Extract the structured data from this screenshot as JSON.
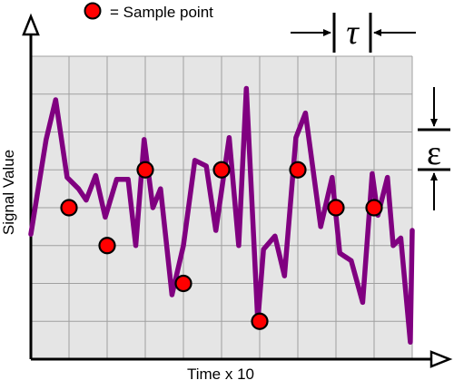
{
  "legend": {
    "marker_label": "= Sample point",
    "marker_color": "#ff0000"
  },
  "axes": {
    "x_label": "Time x 10",
    "y_label": "Signal Value"
  },
  "annotations": {
    "tau": "τ",
    "epsilon": "ε"
  },
  "colors": {
    "signal": "#800080",
    "plot_background": "#e5e5e5",
    "grid": "#a0a0a0",
    "axis": "#000000"
  },
  "grid": {
    "columns": 10,
    "rows": 8
  },
  "chart_data": {
    "type": "line",
    "x_range": [
      0,
      10
    ],
    "y_range": [
      0,
      8
    ],
    "series": [
      {
        "values": [
          [
            0.0,
            3.3
          ],
          [
            0.4,
            5.8
          ],
          [
            0.65,
            6.85
          ],
          [
            0.95,
            4.8
          ],
          [
            1.25,
            4.5
          ],
          [
            1.45,
            4.2
          ],
          [
            1.7,
            4.85
          ],
          [
            1.95,
            3.75
          ],
          [
            2.25,
            4.75
          ],
          [
            2.55,
            4.75
          ],
          [
            2.75,
            3.0
          ],
          [
            2.97,
            5.8
          ],
          [
            3.2,
            4.0
          ],
          [
            3.4,
            4.5
          ],
          [
            3.7,
            1.7
          ],
          [
            4.0,
            3.0
          ],
          [
            4.3,
            5.25
          ],
          [
            4.6,
            5.1
          ],
          [
            4.85,
            3.4
          ],
          [
            5.2,
            5.85
          ],
          [
            5.45,
            3.0
          ],
          [
            5.65,
            7.15
          ],
          [
            5.95,
            1.0
          ],
          [
            6.1,
            2.9
          ],
          [
            6.4,
            3.25
          ],
          [
            6.65,
            2.2
          ],
          [
            6.95,
            5.85
          ],
          [
            7.2,
            6.5
          ],
          [
            7.6,
            3.5
          ],
          [
            7.9,
            4.8
          ],
          [
            8.1,
            2.8
          ],
          [
            8.4,
            2.6
          ],
          [
            8.7,
            1.5
          ],
          [
            8.95,
            4.9
          ],
          [
            9.1,
            3.8
          ],
          [
            9.35,
            4.8
          ],
          [
            9.5,
            3.0
          ],
          [
            9.7,
            3.2
          ],
          [
            9.95,
            0.45
          ],
          [
            10.0,
            3.4
          ]
        ]
      }
    ],
    "sample_points": [
      [
        1,
        4
      ],
      [
        2,
        3
      ],
      [
        3,
        5
      ],
      [
        4,
        2
      ],
      [
        5,
        5
      ],
      [
        6,
        1
      ],
      [
        7,
        5
      ],
      [
        8,
        4
      ],
      [
        9,
        4
      ]
    ]
  }
}
